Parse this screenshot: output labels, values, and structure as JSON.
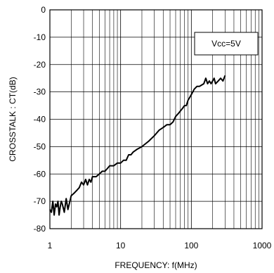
{
  "chart_data": {
    "type": "line",
    "title": "",
    "xlabel": "FREQUENCY: f(MHz)",
    "ylabel": "CROSSTALK : CT(dB)",
    "x_scale": "log",
    "xlim": [
      1,
      1000
    ],
    "ylim": [
      -80,
      0
    ],
    "x_ticks": [
      1,
      10,
      100,
      1000
    ],
    "x_tick_labels": [
      "1",
      "10",
      "100",
      "1000"
    ],
    "y_ticks": [
      0,
      -10,
      -20,
      -30,
      -40,
      -50,
      -60,
      -70,
      -80
    ],
    "y_tick_labels": [
      "0",
      "-10",
      "-20",
      "-30",
      "-40",
      "-50",
      "-60",
      "-70",
      "-80"
    ],
    "grid": true,
    "annotation": "Vcc=5V",
    "annotation_position": "top-right",
    "series": [
      {
        "color": "#000000",
        "x": [
          1.0,
          1.05,
          1.1,
          1.15,
          1.2,
          1.25,
          1.3,
          1.35,
          1.4,
          1.45,
          1.5,
          1.6,
          1.7,
          1.8,
          2.0,
          2.2,
          2.4,
          2.6,
          2.8,
          3.0,
          3.2,
          3.4,
          3.6,
          3.8,
          4.0,
          4.5,
          5.0,
          5.5,
          6.0,
          6.5,
          7.0,
          8.0,
          9.0,
          10,
          11,
          12,
          13,
          14,
          15,
          17,
          20,
          25,
          30,
          35,
          40,
          45,
          50,
          55,
          60,
          65,
          70,
          75,
          80,
          85,
          90,
          95,
          100,
          110,
          120,
          130,
          140,
          150,
          160,
          170,
          180,
          190,
          200,
          210,
          220,
          240,
          260,
          280,
          300
        ],
        "y": [
          -73,
          -74,
          -70,
          -75,
          -71,
          -72,
          -70,
          -75,
          -72,
          -70,
          -71,
          -74,
          -69,
          -73,
          -68,
          -67,
          -66,
          -65,
          -63,
          -64,
          -62,
          -64,
          -62,
          -63,
          -61,
          -61,
          -60,
          -59,
          -59,
          -58,
          -57,
          -57,
          -56,
          -56,
          -55,
          -55,
          -53,
          -53,
          -52,
          -51,
          -50,
          -48,
          -46,
          -44,
          -43,
          -42,
          -42,
          -41,
          -39,
          -38,
          -37,
          -36,
          -35,
          -35,
          -33,
          -32,
          -31,
          -29,
          -28,
          -28,
          -27.5,
          -27,
          -25,
          -27,
          -26,
          -27,
          -26,
          -25,
          -27,
          -26,
          -25,
          -26,
          -24
        ]
      }
    ]
  }
}
